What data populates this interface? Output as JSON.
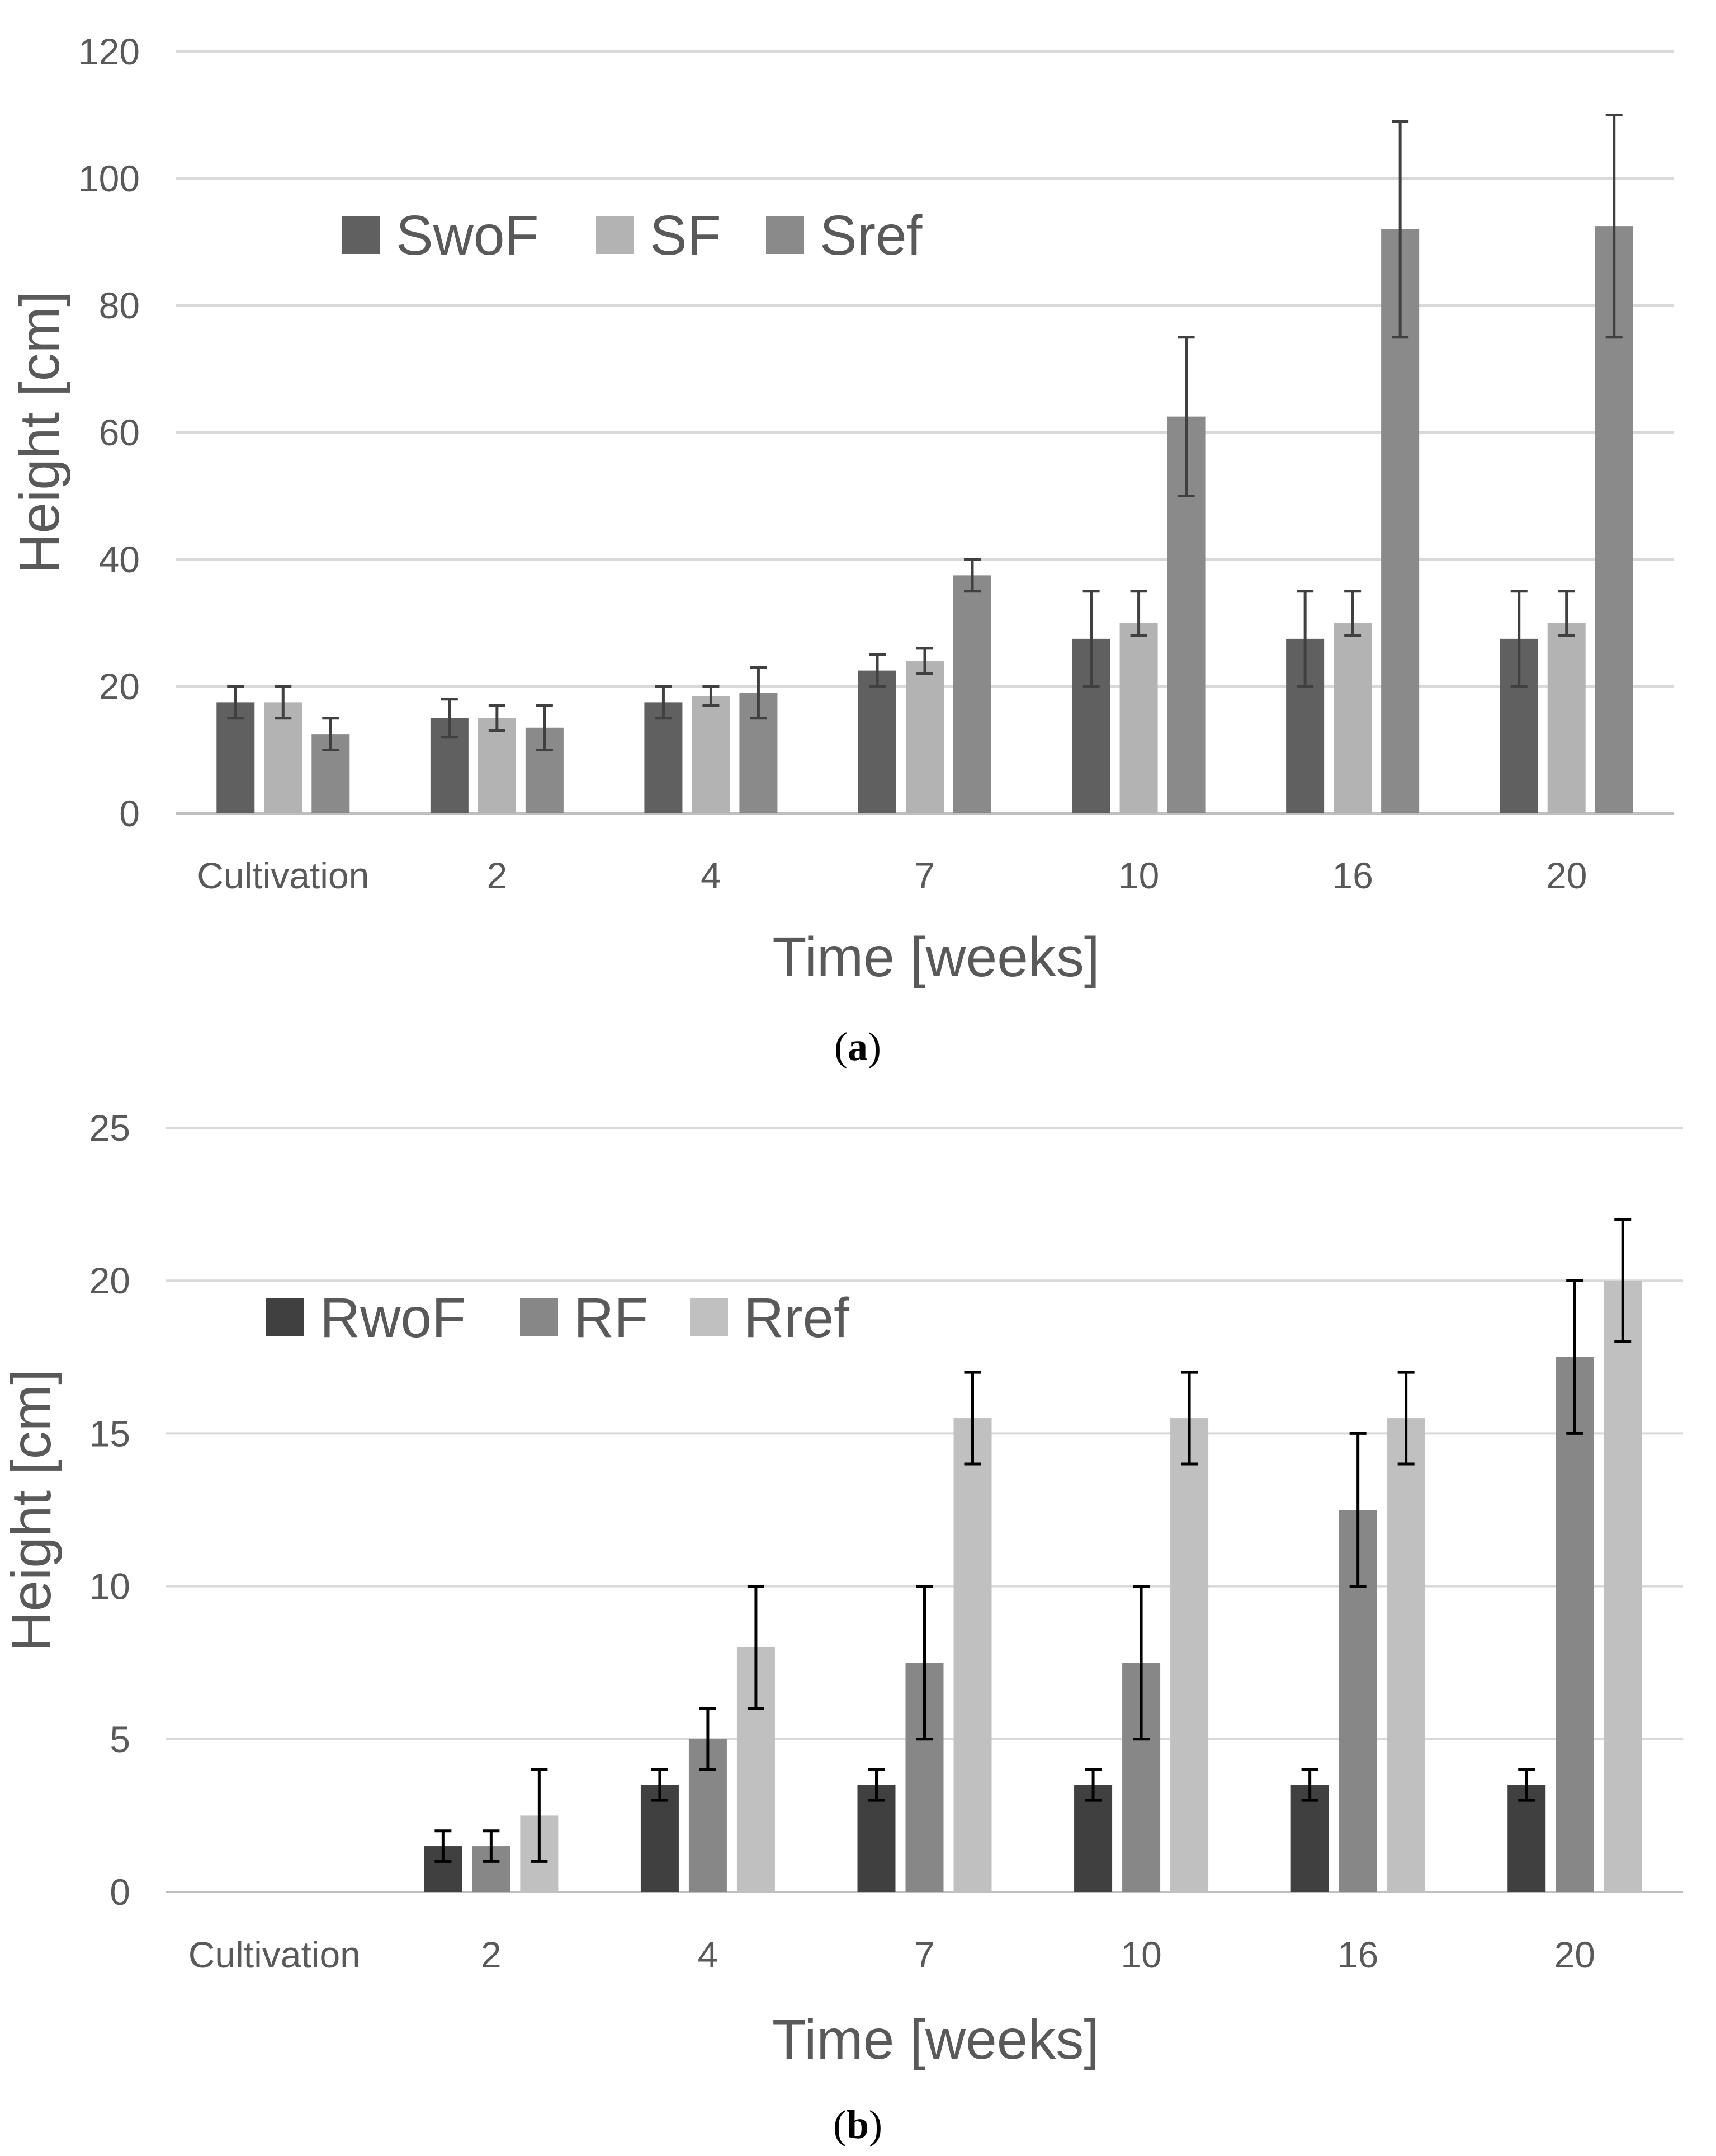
{
  "colors": {
    "grid": "#d9d9d9",
    "baseline": "#bfbfbf",
    "text": "#595959",
    "errorbar_a": "#404040",
    "errorbar_b": "#000000"
  },
  "chart_data": [
    {
      "type": "bar",
      "caption": "(a)",
      "caption_letter": "a",
      "xlabel": "Time [weeks]",
      "ylabel": "Height [cm]",
      "ylim": [
        0,
        120
      ],
      "yticks": [
        "0",
        "20",
        "40",
        "60",
        "80",
        "100",
        "120"
      ],
      "grid": true,
      "legend_position": "upper-left",
      "categories": [
        "Cultivation",
        "2",
        "4",
        "7",
        "10",
        "16",
        "20"
      ],
      "series": [
        {
          "name": "SwoF",
          "color": "#606060",
          "values": [
            17.5,
            15,
            17.5,
            22.5,
            27.5,
            27.5,
            27.5
          ],
          "err_low": [
            15,
            12,
            15,
            20,
            20,
            20,
            20
          ],
          "err_high": [
            20,
            18,
            20,
            25,
            35,
            35,
            35
          ]
        },
        {
          "name": "SF",
          "color": "#b3b3b3",
          "values": [
            17.5,
            15,
            18.5,
            24,
            30,
            30,
            30
          ],
          "err_low": [
            15,
            13,
            17,
            22,
            28,
            28,
            28
          ],
          "err_high": [
            20,
            17,
            20,
            26,
            35,
            35,
            35
          ]
        },
        {
          "name": "Sref",
          "color": "#8a8a8a",
          "values": [
            12.5,
            13.5,
            19,
            37.5,
            62.5,
            92,
            92.5
          ],
          "err_low": [
            10,
            10,
            15,
            35,
            50,
            75,
            75
          ],
          "err_high": [
            15,
            17,
            23,
            40,
            75,
            109,
            110
          ]
        }
      ]
    },
    {
      "type": "bar",
      "caption": "(b)",
      "caption_letter": "b",
      "xlabel": "Time [weeks]",
      "ylabel": "Height [cm]",
      "ylim": [
        0,
        25
      ],
      "yticks": [
        "0",
        "5",
        "10",
        "15",
        "20",
        "25"
      ],
      "grid": true,
      "legend_position": "upper-left",
      "categories": [
        "Cultivation",
        "2",
        "4",
        "7",
        "10",
        "16",
        "20"
      ],
      "series": [
        {
          "name": "RwoF",
          "color": "#404040",
          "values": [
            null,
            1.5,
            3.5,
            3.5,
            3.5,
            3.5,
            3.5
          ],
          "err_low": [
            null,
            1,
            3,
            3,
            3,
            3,
            3
          ],
          "err_high": [
            null,
            2,
            4,
            4,
            4,
            4,
            4
          ]
        },
        {
          "name": "RF",
          "color": "#878787",
          "values": [
            null,
            1.5,
            5,
            7.5,
            7.5,
            12.5,
            17.5
          ],
          "err_low": [
            null,
            1,
            4,
            5,
            5,
            10,
            15
          ],
          "err_high": [
            null,
            2,
            6,
            10,
            10,
            15,
            20
          ]
        },
        {
          "name": "Rref",
          "color": "#c0c0c0",
          "values": [
            null,
            2.5,
            8,
            15.5,
            15.5,
            15.5,
            20
          ],
          "err_low": [
            null,
            1,
            6,
            14,
            14,
            14,
            18
          ],
          "err_high": [
            null,
            4,
            10,
            17,
            17,
            17,
            22
          ]
        }
      ]
    }
  ]
}
